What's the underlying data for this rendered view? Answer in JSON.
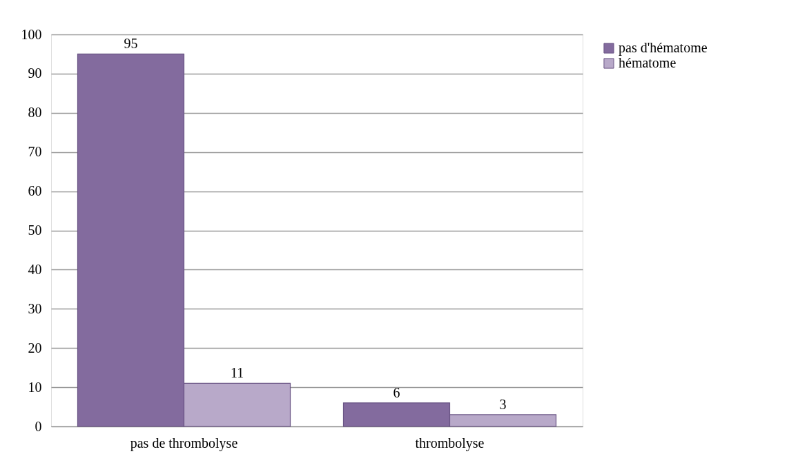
{
  "chart_data": {
    "type": "bar",
    "categories": [
      "pas de thrombolyse",
      "thrombolyse"
    ],
    "series": [
      {
        "name": "pas d'hématome",
        "color": "#836b9e",
        "values": [
          95,
          6
        ]
      },
      {
        "name": "hématome",
        "color": "#b8a9c9",
        "values": [
          11,
          3
        ]
      }
    ],
    "ylim": [
      0,
      100
    ],
    "yticks": [
      0,
      10,
      20,
      30,
      40,
      50,
      60,
      70,
      80,
      90,
      100
    ],
    "grid": "y",
    "legend": "right",
    "data_labels": true
  }
}
